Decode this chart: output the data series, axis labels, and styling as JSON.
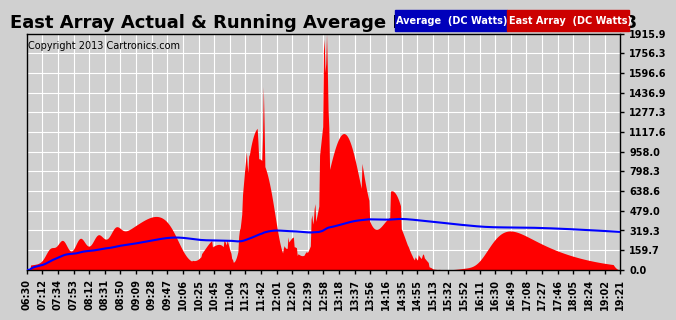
{
  "title": "East Array Actual & Running Average Power Sun Apr 14 19:28",
  "copyright": "Copyright 2013 Cartronics.com",
  "ylabel_right_ticks": [
    0.0,
    159.7,
    319.3,
    479.0,
    638.6,
    798.3,
    958.0,
    1117.6,
    1277.3,
    1436.9,
    1596.6,
    1756.3,
    1915.9
  ],
  "ymax": 1915.9,
  "ymin": 0.0,
  "legend_labels": [
    "Average  (DC Watts)",
    "East Array  (DC Watts)"
  ],
  "background_color": "#d0d0d0",
  "grid_color": "#ffffff",
  "bar_color": "#ff0000",
  "avg_line_color": "#0000ff",
  "title_fontsize": 13,
  "copyright_fontsize": 7,
  "tick_fontsize": 7,
  "x_tick_labels": [
    "06:30",
    "07:12",
    "07:34",
    "07:53",
    "08:12",
    "08:31",
    "08:50",
    "09:09",
    "09:28",
    "09:47",
    "10:06",
    "10:25",
    "10:45",
    "11:04",
    "11:23",
    "11:42",
    "12:01",
    "12:20",
    "12:39",
    "12:58",
    "13:18",
    "13:37",
    "13:56",
    "14:16",
    "14:35",
    "14:55",
    "15:13",
    "15:32",
    "15:52",
    "16:11",
    "16:30",
    "16:49",
    "17:08",
    "17:27",
    "17:46",
    "18:05",
    "18:24",
    "19:02",
    "19:21"
  ]
}
